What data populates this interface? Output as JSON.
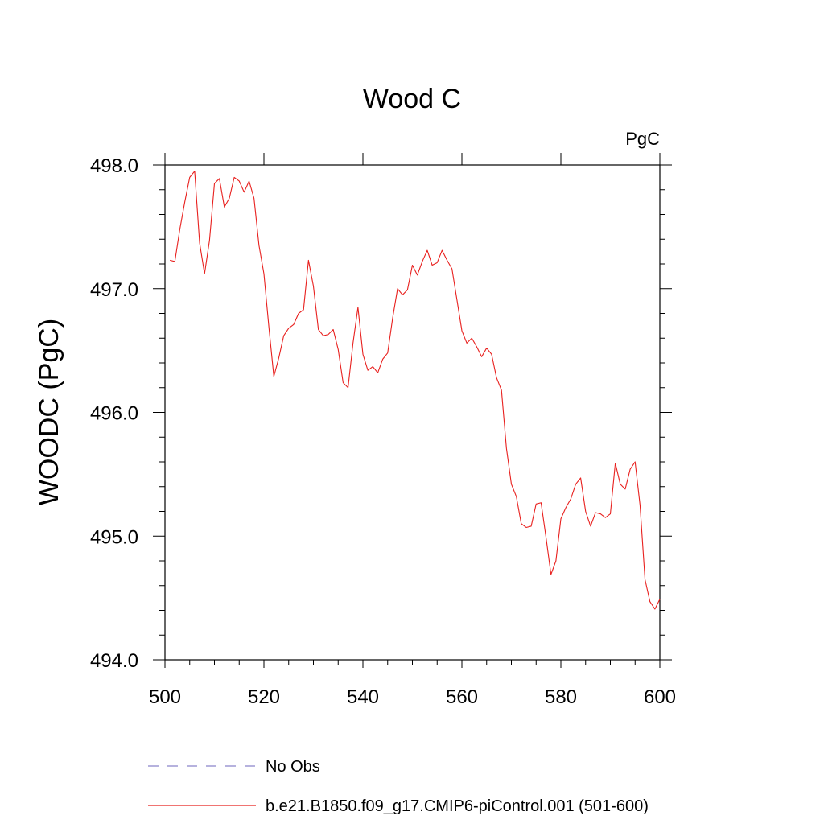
{
  "chart_data": {
    "type": "line",
    "title": "Wood C",
    "units_label": "PgC",
    "xlabel": "",
    "ylabel": "WOODC  (PgC)",
    "xlim": [
      500,
      600
    ],
    "ylim": [
      494.0,
      498.0
    ],
    "x_ticks": [
      500,
      520,
      540,
      560,
      580,
      600
    ],
    "x_tick_labels": [
      "500",
      "520",
      "540",
      "560",
      "580",
      "600"
    ],
    "y_ticks": [
      494.0,
      495.0,
      496.0,
      497.0,
      498.0
    ],
    "y_tick_labels": [
      "494.0",
      "495.0",
      "496.0",
      "497.0",
      "498.0"
    ],
    "grid": false,
    "legend_position": "bottom",
    "legend": [
      {
        "label": "No Obs",
        "style": "dashed",
        "color": "#8a83c9"
      },
      {
        "label": "b.e21.B1850.f09_g17.CMIP6-piControl.001 (501-600)",
        "style": "solid",
        "color": "#e8201e"
      }
    ],
    "series": [
      {
        "name": "b.e21.B1850.f09_g17.CMIP6-piControl.001 (501-600)",
        "color": "#e8201e",
        "x": [
          501,
          502,
          503,
          504,
          505,
          506,
          507,
          508,
          509,
          510,
          511,
          512,
          513,
          514,
          515,
          516,
          517,
          518,
          519,
          520,
          521,
          522,
          523,
          524,
          525,
          526,
          527,
          528,
          529,
          530,
          531,
          532,
          533,
          534,
          535,
          536,
          537,
          538,
          539,
          540,
          541,
          542,
          543,
          544,
          545,
          546,
          547,
          548,
          549,
          550,
          551,
          552,
          553,
          554,
          555,
          556,
          557,
          558,
          559,
          560,
          561,
          562,
          563,
          564,
          565,
          566,
          567,
          568,
          569,
          570,
          571,
          572,
          573,
          574,
          575,
          576,
          577,
          578,
          579,
          580,
          581,
          582,
          583,
          584,
          585,
          586,
          587,
          588,
          589,
          590,
          591,
          592,
          593,
          594,
          595,
          596,
          597,
          598,
          599,
          600
        ],
        "values": [
          497.23,
          497.22,
          497.48,
          497.7,
          497.9,
          497.95,
          497.37,
          497.12,
          497.39,
          497.85,
          497.89,
          497.66,
          497.73,
          497.9,
          497.87,
          497.78,
          497.87,
          497.73,
          497.35,
          497.12,
          496.69,
          496.29,
          496.44,
          496.62,
          496.68,
          496.71,
          496.8,
          496.83,
          497.23,
          497.02,
          496.67,
          496.62,
          496.63,
          496.67,
          496.51,
          496.24,
          496.2,
          496.56,
          496.85,
          496.47,
          496.34,
          496.37,
          496.32,
          496.43,
          496.48,
          496.76,
          497.0,
          496.95,
          496.99,
          497.19,
          497.11,
          497.22,
          497.31,
          497.19,
          497.21,
          497.31,
          497.23,
          497.16,
          496.91,
          496.66,
          496.56,
          496.6,
          496.53,
          496.45,
          496.52,
          496.47,
          496.28,
          496.18,
          495.71,
          495.42,
          495.32,
          495.1,
          495.07,
          495.08,
          495.26,
          495.27,
          494.99,
          494.69,
          494.8,
          495.14,
          495.23,
          495.3,
          495.42,
          495.47,
          495.2,
          495.08,
          495.19,
          495.18,
          495.15,
          495.18,
          495.59,
          495.42,
          495.38,
          495.54,
          495.6,
          495.25,
          494.65,
          494.47,
          494.41,
          494.49
        ]
      }
    ]
  }
}
